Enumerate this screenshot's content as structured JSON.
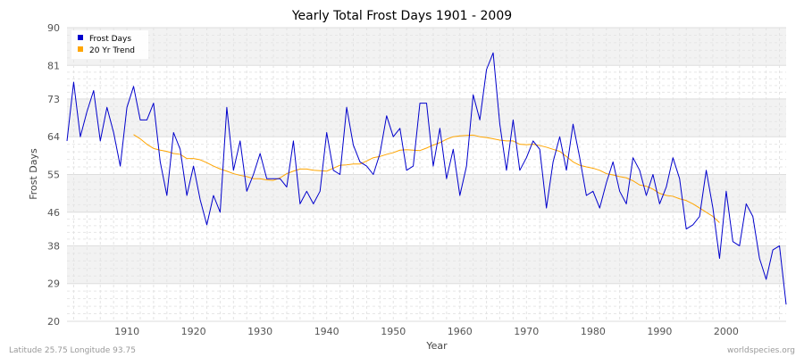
{
  "footer": {
    "coords": "Latitude 25.75 Longitude 93.75",
    "site": "worldspecies.org"
  },
  "chart_data": {
    "type": "line",
    "title": "Yearly Total Frost Days 1901 - 2009",
    "xlabel": "Year",
    "ylabel": "Frost Days",
    "xlim": [
      1901,
      2009
    ],
    "ylim": [
      20,
      90
    ],
    "yticks": [
      20,
      29,
      38,
      46,
      55,
      64,
      73,
      81,
      90
    ],
    "xticks": [
      1910,
      1920,
      1930,
      1940,
      1950,
      1960,
      1970,
      1980,
      1990,
      2000
    ],
    "grid": true,
    "legend_position": "top-left",
    "series": [
      {
        "name": "Frost Days",
        "color": "#0000cc",
        "x": [
          1901,
          1902,
          1903,
          1904,
          1905,
          1906,
          1907,
          1908,
          1909,
          1910,
          1911,
          1912,
          1913,
          1914,
          1915,
          1916,
          1917,
          1918,
          1919,
          1920,
          1921,
          1922,
          1923,
          1924,
          1925,
          1926,
          1927,
          1928,
          1929,
          1930,
          1931,
          1932,
          1933,
          1934,
          1935,
          1936,
          1937,
          1938,
          1939,
          1940,
          1941,
          1942,
          1943,
          1944,
          1945,
          1946,
          1947,
          1948,
          1949,
          1950,
          1951,
          1952,
          1953,
          1954,
          1955,
          1956,
          1957,
          1958,
          1959,
          1960,
          1961,
          1962,
          1963,
          1964,
          1965,
          1966,
          1967,
          1968,
          1969,
          1970,
          1971,
          1972,
          1973,
          1974,
          1975,
          1976,
          1977,
          1978,
          1979,
          1980,
          1981,
          1982,
          1983,
          1984,
          1985,
          1986,
          1987,
          1988,
          1989,
          1990,
          1991,
          1992,
          1993,
          1994,
          1995,
          1996,
          1997,
          1998,
          1999,
          2000,
          2001,
          2002,
          2003,
          2004,
          2005,
          2006,
          2007,
          2008,
          2009
        ],
        "values": [
          63,
          77,
          64,
          70,
          75,
          63,
          71,
          65,
          57,
          71,
          76,
          68,
          68,
          72,
          58,
          50,
          65,
          61,
          50,
          57,
          49,
          43,
          50,
          46,
          71,
          56,
          63,
          51,
          55,
          60,
          54,
          54,
          54,
          52,
          63,
          48,
          51,
          48,
          51,
          65,
          56,
          55,
          71,
          62,
          58,
          57,
          55,
          60,
          69,
          64,
          66,
          56,
          57,
          72,
          72,
          57,
          66,
          54,
          61,
          50,
          57,
          74,
          68,
          80,
          84,
          67,
          56,
          68,
          56,
          59,
          63,
          61,
          47,
          58,
          64,
          56,
          67,
          59,
          50,
          51,
          47,
          53,
          58,
          51,
          48,
          59,
          56,
          50,
          55,
          48,
          52,
          59,
          54,
          42,
          43,
          45,
          56,
          47,
          35,
          51,
          39,
          38,
          48,
          45,
          35,
          30,
          37,
          38,
          24
        ]
      },
      {
        "name": "20 Yr Trend",
        "color": "#ffa500",
        "x": [
          1911,
          1912,
          1913,
          1914,
          1915,
          1916,
          1917,
          1918,
          1919,
          1920,
          1921,
          1922,
          1923,
          1924,
          1925,
          1926,
          1927,
          1928,
          1929,
          1930,
          1931,
          1932,
          1933,
          1934,
          1935,
          1936,
          1937,
          1938,
          1939,
          1940,
          1941,
          1942,
          1943,
          1944,
          1945,
          1946,
          1947,
          1948,
          1949,
          1950,
          1951,
          1952,
          1953,
          1954,
          1955,
          1956,
          1957,
          1958,
          1959,
          1960,
          1961,
          1962,
          1963,
          1964,
          1965,
          1966,
          1967,
          1968,
          1969,
          1970,
          1971,
          1972,
          1973,
          1974,
          1975,
          1976,
          1977,
          1978,
          1979,
          1980,
          1981,
          1982,
          1983,
          1984,
          1985,
          1986,
          1987,
          1988,
          1989,
          1990,
          1991,
          1992,
          1993,
          1994,
          1995,
          1996,
          1997,
          1998,
          1999
        ],
        "values": [
          64.5,
          63.5,
          62.2,
          61.2,
          60.8,
          60.5,
          60,
          59.8,
          58.8,
          58.8,
          58.5,
          57.8,
          57,
          56.3,
          55.8,
          55.2,
          54.8,
          54.5,
          54,
          54,
          53.7,
          53.6,
          54.2,
          55.2,
          55.8,
          56.3,
          56.3,
          56,
          55.9,
          55.8,
          56.5,
          57.2,
          57.3,
          57.5,
          57.5,
          58.2,
          59,
          59.3,
          59.8,
          60.2,
          60.8,
          60.9,
          60.8,
          60.7,
          61.3,
          62,
          62.6,
          63.4,
          64,
          64.2,
          64.3,
          64.4,
          64,
          63.8,
          63.5,
          63.2,
          63,
          63,
          62.2,
          62.1,
          62.2,
          61.9,
          61.5,
          61,
          60.5,
          59.3,
          58,
          57.2,
          56.8,
          56.5,
          56,
          55.2,
          54.9,
          54.5,
          54.2,
          53.5,
          52.5,
          52.2,
          51.5,
          50.5,
          50,
          49.8,
          49.2,
          48.8,
          48,
          47,
          46,
          45,
          43.5
        ]
      }
    ]
  }
}
